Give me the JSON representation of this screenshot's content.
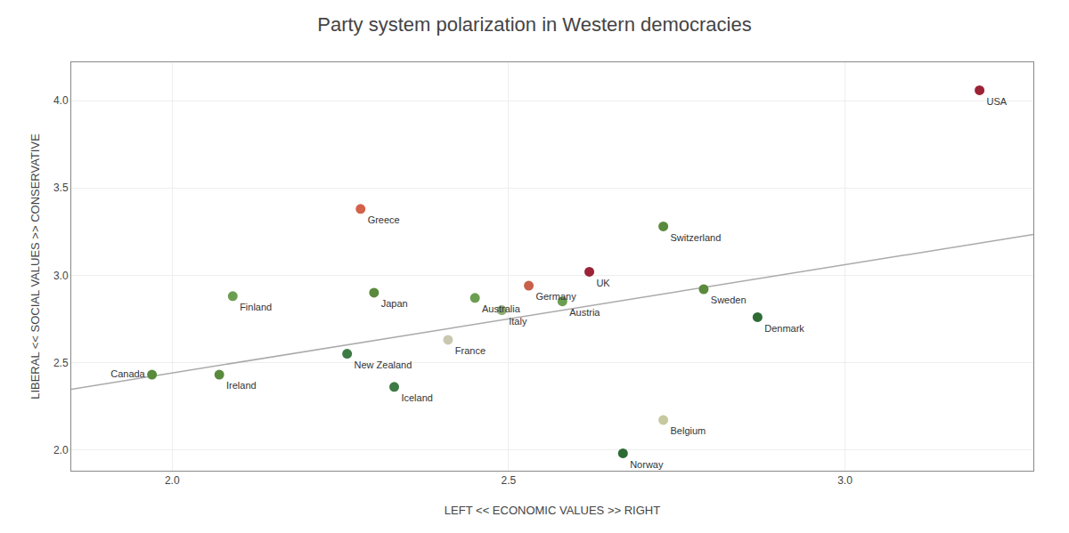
{
  "chart_data": {
    "type": "scatter",
    "title": "Party system polarization in Western democracies",
    "xlabel": "LEFT << ECONOMIC VALUES >> RIGHT",
    "ylabel": "LIBERAL << SOCIAL VALUES >> CONSERVATIVE",
    "xlim": [
      1.85,
      3.28
    ],
    "ylim": [
      1.88,
      4.22
    ],
    "xticks": [
      {
        "value": 2.0,
        "label": "2.0"
      },
      2.5,
      {
        "value": 3.0,
        "label": "3.0"
      }
    ],
    "yticks": [
      {
        "value": 2.0,
        "label": "2.0"
      },
      2.5,
      {
        "value": 3.0,
        "label": "3.0"
      },
      3.5,
      {
        "value": 4.0,
        "label": "4.0"
      }
    ],
    "grid": true,
    "series": [
      {
        "type": "line",
        "x": [
          1.85,
          3.28
        ],
        "values": [
          2.347,
          3.2336
        ],
        "color": "#aaaaaa"
      },
      {
        "type": "scatter",
        "labels": [
          "USA",
          "Greece",
          "Switzerland",
          "UK",
          "Germany",
          "Sweden",
          "Japan",
          "Australia",
          "Austria",
          "Finland",
          "Italy",
          "Denmark",
          "France",
          "New Zealand",
          "Iceland",
          "Canada",
          "Ireland",
          "Belgium",
          "Norway"
        ],
        "x": [
          3.2,
          2.28,
          2.73,
          2.62,
          2.53,
          2.79,
          2.3,
          2.45,
          2.58,
          2.09,
          2.49,
          2.87,
          2.41,
          2.26,
          2.33,
          1.97,
          2.07,
          2.73,
          2.67
        ],
        "values": [
          4.06,
          3.38,
          3.28,
          3.02,
          2.94,
          2.92,
          2.9,
          2.87,
          2.85,
          2.88,
          2.8,
          2.76,
          2.63,
          2.55,
          2.36,
          2.43,
          2.43,
          2.17,
          1.98
        ],
        "colors": [
          "#9b2335",
          "#d4614a",
          "#5a8a3c",
          "#9b2335",
          "#c8604a",
          "#5a8a3c",
          "#5a8a3c",
          "#6b9e50",
          "#6b9e50",
          "#6b9e50",
          "#8fad72",
          "#2e6b35",
          "#c8c8b0",
          "#3d7a45",
          "#3d7a45",
          "#5a8a3c",
          "#5a8a3c",
          "#c8c8a0",
          "#2e6b35"
        ]
      }
    ]
  }
}
